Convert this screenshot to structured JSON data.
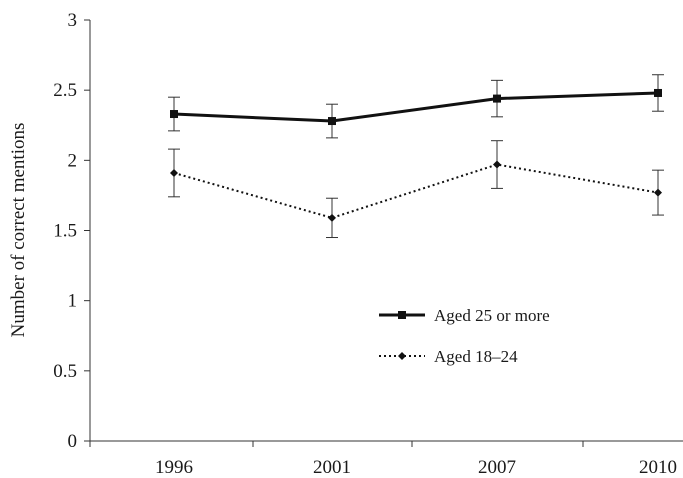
{
  "chart_data": {
    "type": "line",
    "categories": [
      "1996",
      "2001",
      "2007",
      "2010"
    ],
    "ylabel": "Number of correct mentions",
    "xlabel": "",
    "ylim": [
      0,
      3
    ],
    "yticks": [
      "0",
      "0.5",
      "1",
      "1.5",
      "2",
      "2.5",
      "3"
    ],
    "grid": false,
    "legend_position": "center-right",
    "series": [
      {
        "name": "Aged 25 or more",
        "values": [
          2.33,
          2.28,
          2.44,
          2.48
        ],
        "error": [
          0.12,
          0.12,
          0.13,
          0.13
        ],
        "line_style": "solid",
        "marker": "square",
        "color": "#111111"
      },
      {
        "name": "Aged 18–24",
        "values": [
          1.91,
          1.59,
          1.97,
          1.77
        ],
        "error": [
          0.17,
          0.14,
          0.17,
          0.16
        ],
        "line_style": "dotted",
        "marker": "diamond",
        "color": "#111111"
      }
    ]
  }
}
